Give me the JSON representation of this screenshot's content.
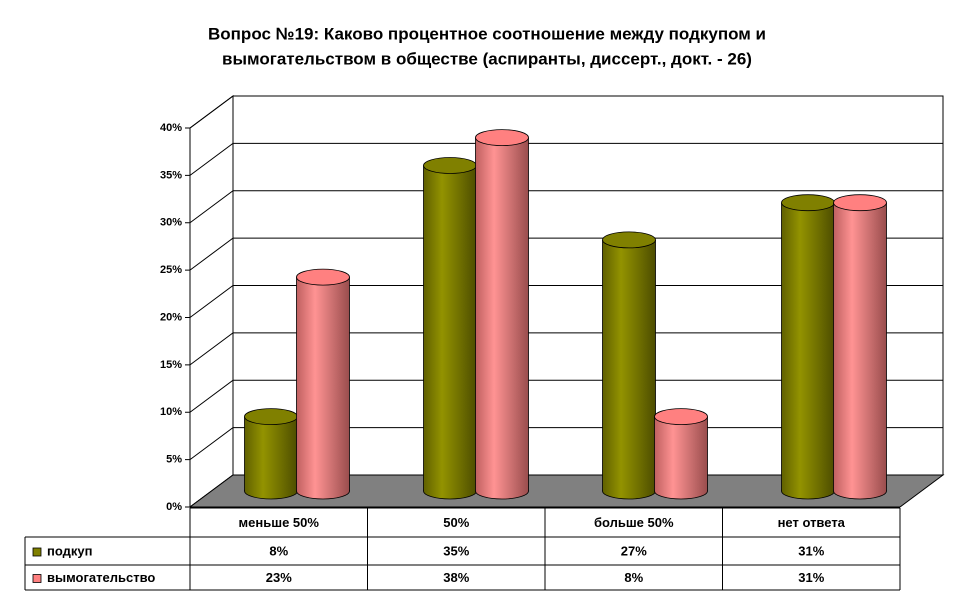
{
  "chart_data": {
    "type": "bar3d",
    "title": [
      "Вопрос №19: Каково процентное соотношение между подкупом и",
      "вымогательством в обществе (аспиранты, диссерт., докт. - 26)"
    ],
    "categories": [
      "меньше 50%",
      "50%",
      "больше 50%",
      "нет ответа"
    ],
    "series": [
      {
        "name": "подкуп",
        "color": "#808000",
        "values": [
          8,
          35,
          27,
          31
        ],
        "value_labels": [
          "8%",
          "35%",
          "27%",
          "31%"
        ]
      },
      {
        "name": "вымогательство",
        "color": "#ff8080",
        "values": [
          23,
          38,
          8,
          31
        ],
        "value_labels": [
          "23%",
          "38%",
          "8%",
          "31%"
        ]
      }
    ],
    "ylim": [
      0,
      40
    ],
    "yticks": [
      {
        "value": 0,
        "label": "0%"
      },
      {
        "value": 5,
        "label": "5%"
      },
      {
        "value": 10,
        "label": "10%"
      },
      {
        "value": 15,
        "label": "15%"
      },
      {
        "value": 20,
        "label": "20%"
      },
      {
        "value": 25,
        "label": "25%"
      },
      {
        "value": 30,
        "label": "30%"
      },
      {
        "value": 35,
        "label": "35%"
      },
      {
        "value": 40,
        "label": "40%"
      }
    ],
    "grid": true
  }
}
